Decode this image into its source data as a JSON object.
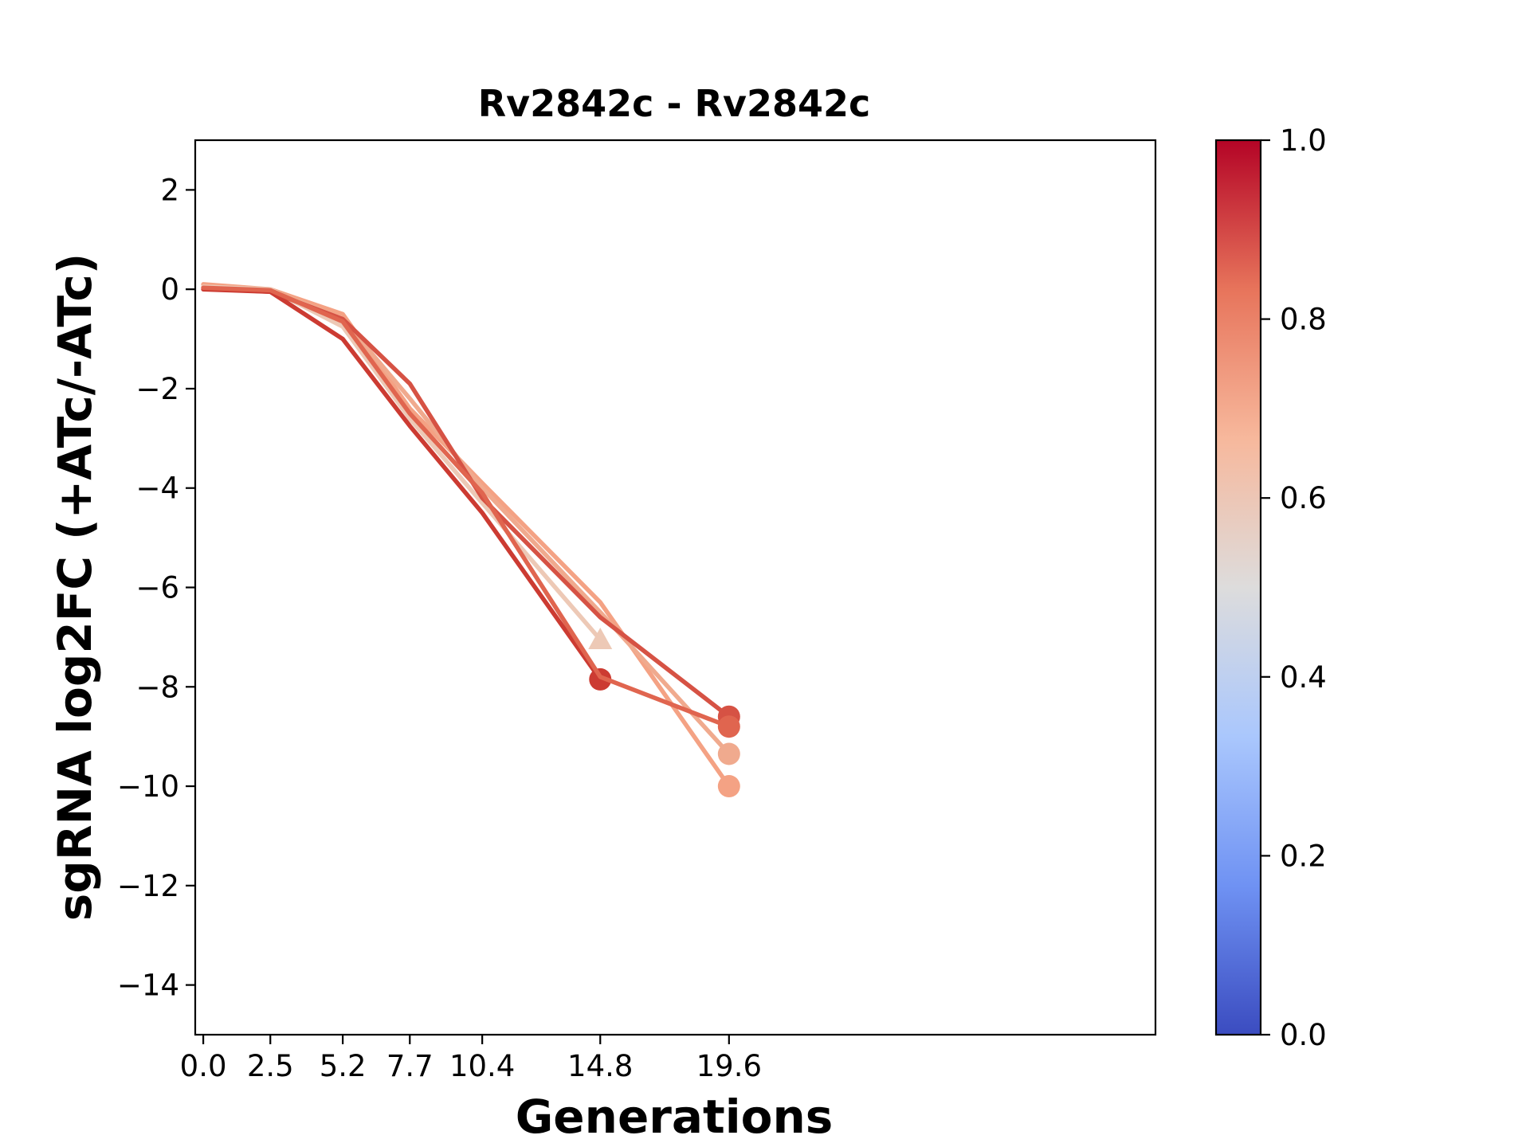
{
  "chart_data": {
    "type": "line",
    "title": "Rv2842c - Rv2842c",
    "xlabel": "Generations",
    "ylabel": "sgRNA log2FC (+ATc/-ATc)",
    "xlim": [
      -0.3,
      35.5
    ],
    "ylim": [
      -15,
      3
    ],
    "xticks": [
      0.0,
      2.5,
      5.2,
      7.7,
      10.4,
      14.8,
      19.6
    ],
    "xtick_labels": [
      "0.0",
      "2.5",
      "5.2",
      "7.7",
      "10.4",
      "14.8",
      "19.6"
    ],
    "yticks": [
      2,
      0,
      -2,
      -4,
      -6,
      -8,
      -10,
      -12,
      -14
    ],
    "ytick_labels": [
      "2",
      "0",
      "−2",
      "−4",
      "−6",
      "−8",
      "−10",
      "−12",
      "−14"
    ],
    "grid": false,
    "colorbar": {
      "colormap": "coolwarm",
      "range": [
        0.0,
        1.0
      ],
      "ticks": [
        0.0,
        0.2,
        0.4,
        0.6,
        0.8,
        1.0
      ],
      "tick_labels": [
        "0.0",
        "0.2",
        "0.4",
        "0.6",
        "0.8",
        "1.0"
      ],
      "stops": [
        "#3b4cc0",
        "#6f92f3",
        "#aac7fd",
        "#dddcdc",
        "#f7b89c",
        "#e7745b",
        "#b40426"
      ]
    },
    "series": [
      {
        "color": "#f4a284",
        "x": [
          0.0,
          2.5,
          5.2,
          7.7,
          10.4,
          14.8,
          19.6
        ],
        "y": [
          0.1,
          0.0,
          -0.5,
          -2.4,
          -3.9,
          -6.3,
          -10.0
        ],
        "end_marker": "circle"
      },
      {
        "color": "#f0aa8e",
        "x": [
          0.0,
          2.5,
          5.2,
          7.7,
          10.4,
          14.8,
          19.6
        ],
        "y": [
          0.05,
          0.0,
          -0.6,
          -2.2,
          -4.0,
          -6.5,
          -9.35
        ],
        "end_marker": "circle"
      },
      {
        "color": "#edc9b6",
        "x": [
          0.0,
          2.5,
          5.2,
          7.7,
          10.4,
          14.8
        ],
        "y": [
          0.05,
          0.0,
          -0.75,
          -2.6,
          -4.3,
          -7.05
        ],
        "end_marker": "triangle"
      },
      {
        "color": "#d65244",
        "x": [
          0.0,
          2.5,
          5.2,
          7.7,
          10.4,
          14.8,
          19.6
        ],
        "y": [
          0.02,
          -0.05,
          -0.6,
          -1.9,
          -4.2,
          -6.6,
          -8.6
        ],
        "end_marker": "circle"
      },
      {
        "color": "#cc3b32",
        "x": [
          0.0,
          2.5,
          5.2,
          7.7,
          10.4,
          14.8
        ],
        "y": [
          0.0,
          -0.05,
          -1.0,
          -2.75,
          -4.5,
          -7.85
        ],
        "end_marker": "circle"
      },
      {
        "color": "#e0654f",
        "x": [
          0.0,
          2.5,
          5.2,
          7.7,
          10.4,
          14.8,
          19.6
        ],
        "y": [
          0.03,
          -0.02,
          -0.65,
          -2.5,
          -4.1,
          -7.8,
          -8.8
        ],
        "end_marker": "circle"
      }
    ]
  }
}
